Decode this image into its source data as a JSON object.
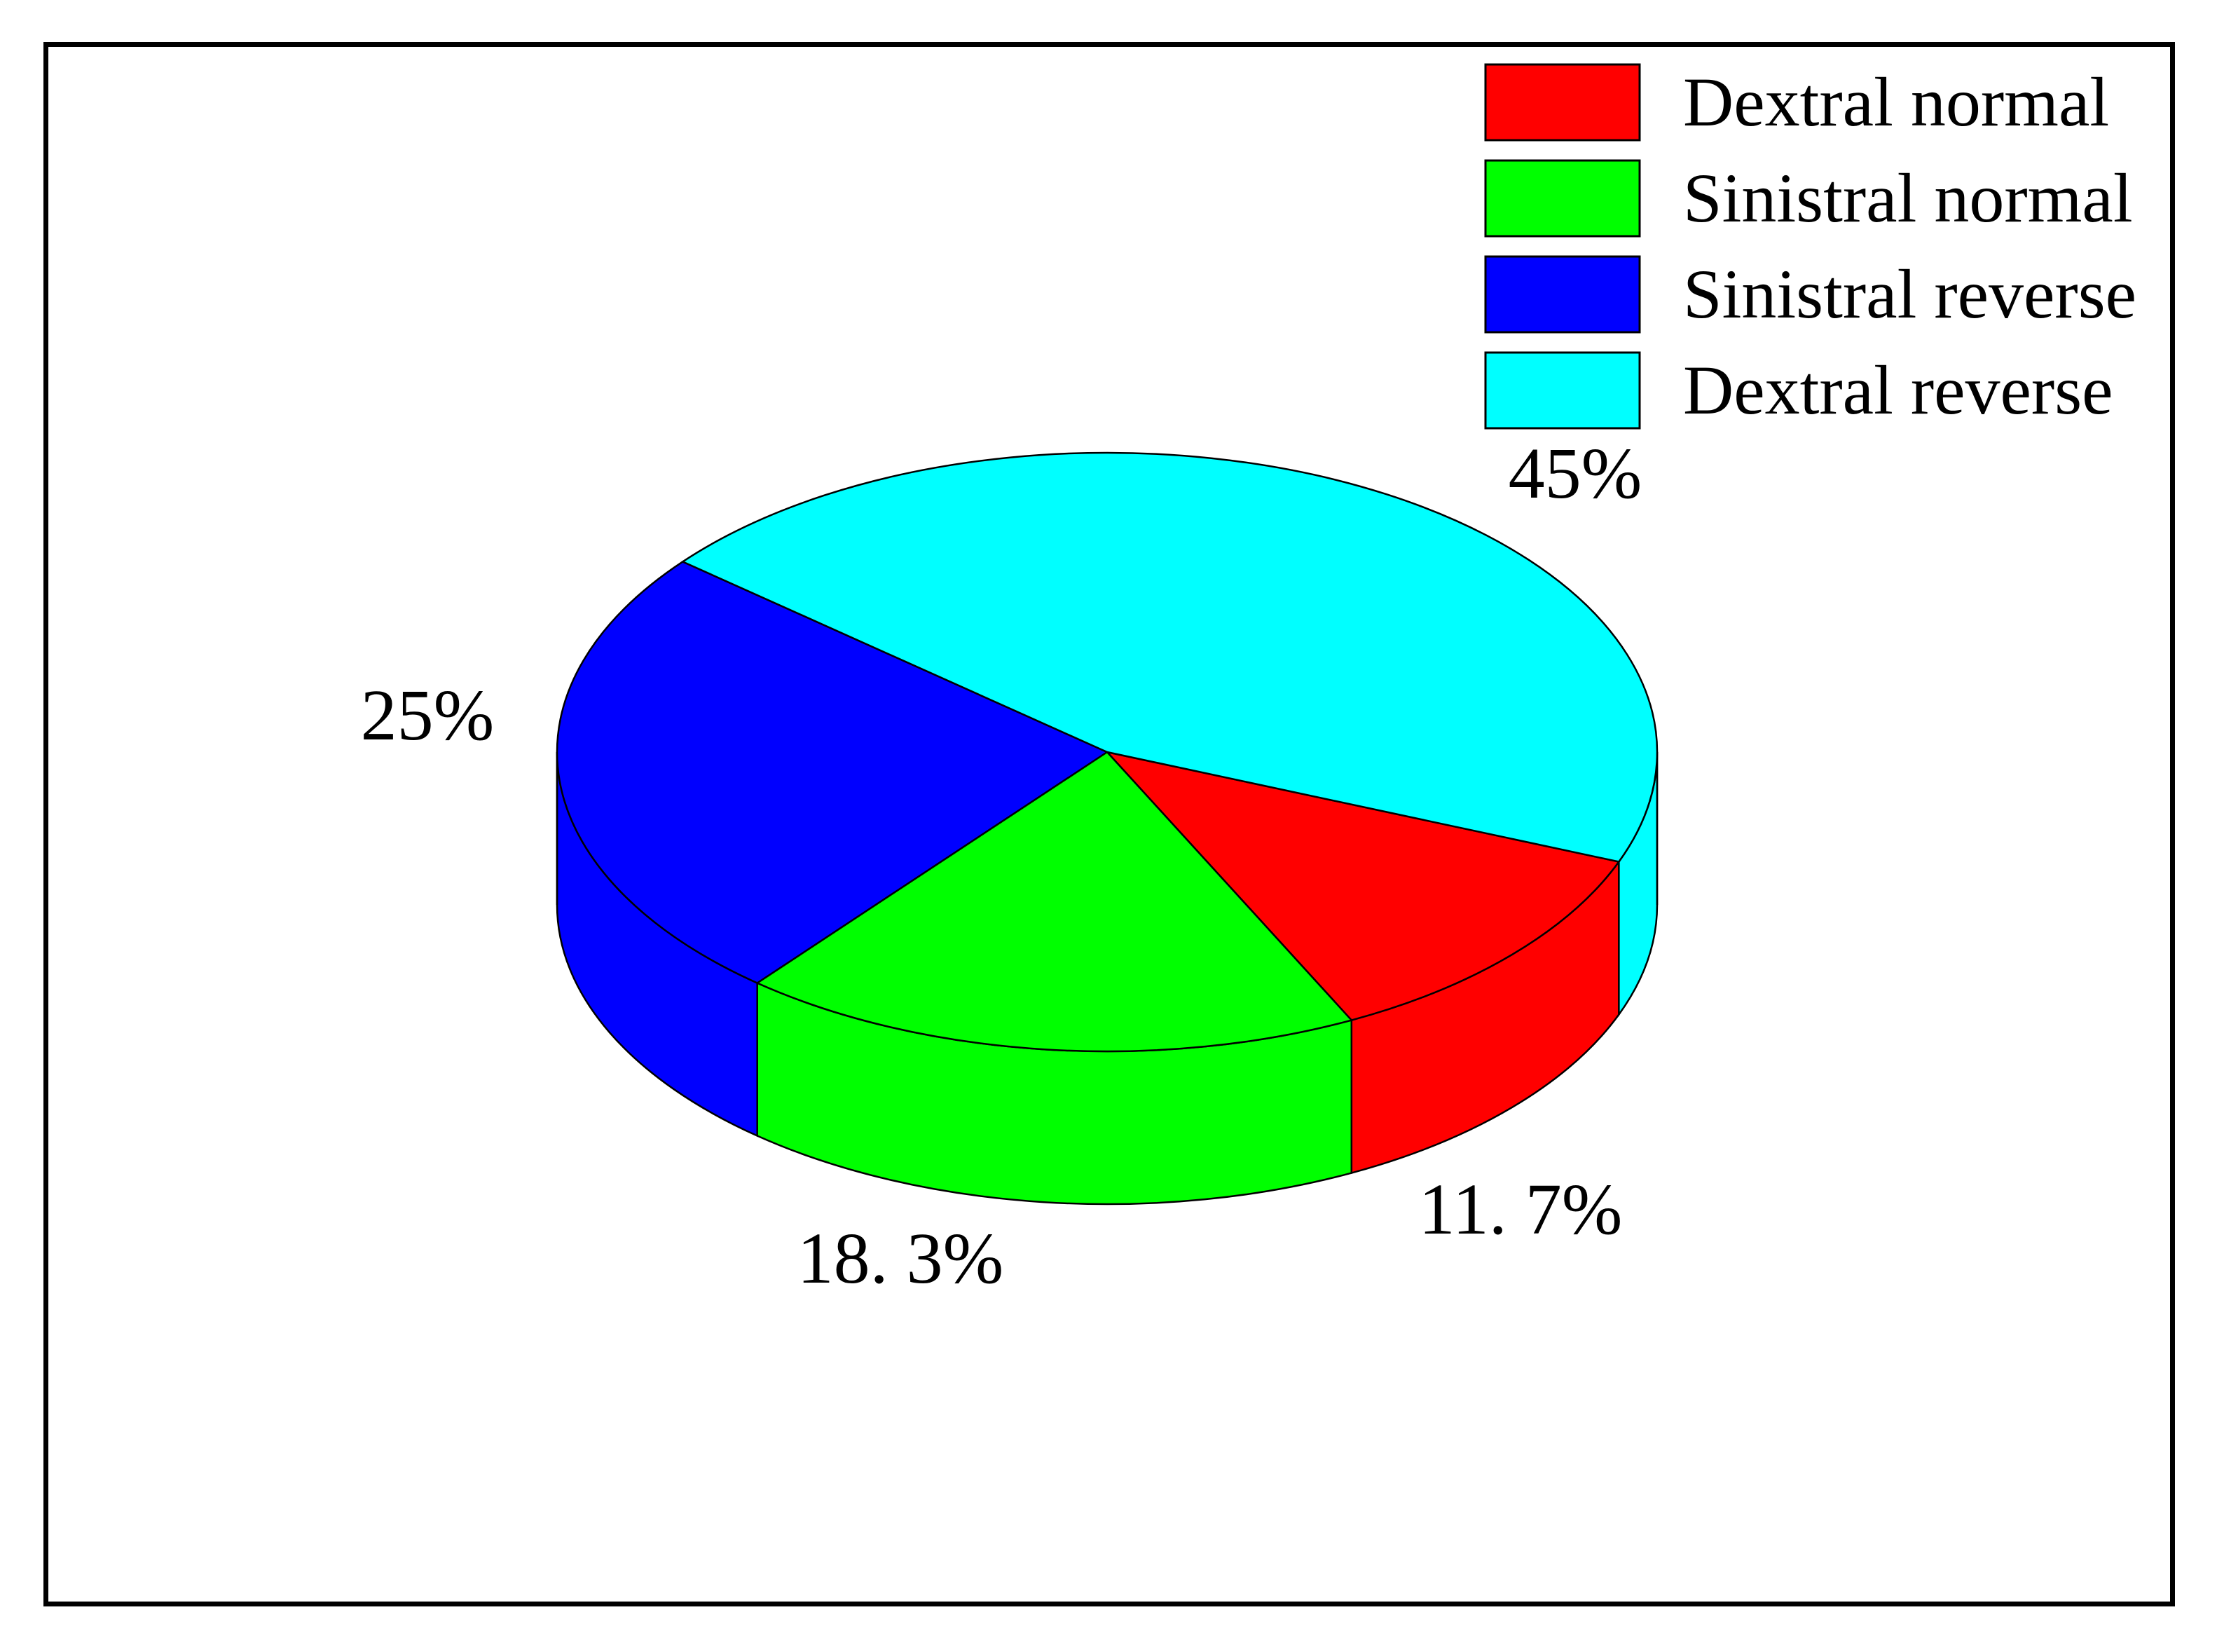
{
  "chart_data": {
    "type": "pie",
    "style": "3d",
    "legend_position": "top-right",
    "slices": [
      {
        "name": "Dextral normal",
        "value": 11.7,
        "label": "11. 7%",
        "color": "#ff0000"
      },
      {
        "name": "Sinistral normal",
        "value": 18.3,
        "label": "18. 3%",
        "color": "#00ff00"
      },
      {
        "name": "Sinistral reverse",
        "value": 25,
        "label": "25%",
        "color": "#0000ff"
      },
      {
        "name": "Dextral reverse",
        "value": 45,
        "label": "45%",
        "color": "#00ffff"
      }
    ]
  }
}
